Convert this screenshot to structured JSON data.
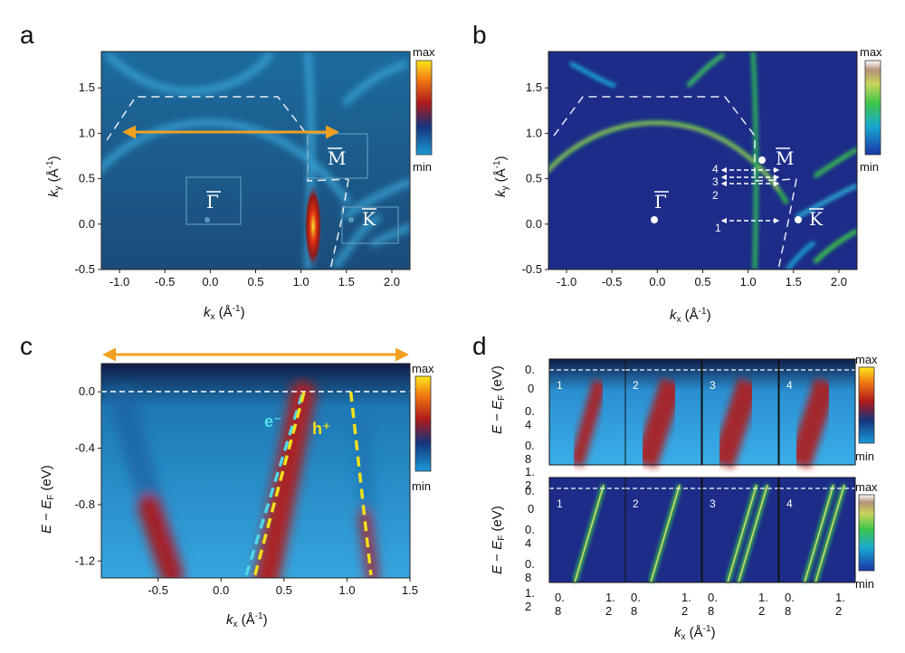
{
  "panels": {
    "a": {
      "label": "a"
    },
    "b": {
      "label": "b"
    },
    "c": {
      "label": "c"
    },
    "d": {
      "label": "d"
    }
  },
  "colorbar": {
    "max": "max",
    "min": "min"
  },
  "symbols": {
    "gamma": "Γ",
    "M": "M",
    "K": "K"
  },
  "annotations": {
    "electron": "e⁻",
    "hole": "h⁺",
    "cuts": [
      "1",
      "2",
      "3",
      "4"
    ]
  },
  "chart_data": [
    {
      "id": "a",
      "type": "heatmap",
      "xlabel": "k_x (Å⁻¹)",
      "ylabel": "k_y (Å⁻¹)",
      "xlim": [
        -1.2,
        2.2
      ],
      "ylim": [
        -0.5,
        1.9
      ],
      "xticks": [
        "-1.0",
        "-0.5",
        "0.0",
        "0.5",
        "1.0",
        "1.5",
        "2.0"
      ],
      "yticks": [
        "-0.5",
        "0.0",
        "0.5",
        "1.0",
        "1.5"
      ],
      "colorscale": "blue-red-yellow",
      "points": [
        {
          "label": "Γ",
          "x": 0.0,
          "y": 0.0
        },
        {
          "label": "M",
          "x": 1.17,
          "y": 0.67
        },
        {
          "label": "K",
          "x": 1.57,
          "y": 0.0
        }
      ],
      "cut": {
        "x": [
          -0.95,
          1.45
        ],
        "y": 1.0
      }
    },
    {
      "id": "b",
      "type": "heatmap",
      "xlabel": "k_x (Å⁻¹)",
      "ylabel": "k_y (Å⁻¹)",
      "xlim": [
        -1.2,
        2.2
      ],
      "ylim": [
        -0.5,
        1.9
      ],
      "xticks": [
        "-1.0",
        "-0.5",
        "0.0",
        "0.5",
        "1.0",
        "1.5",
        "2.0"
      ],
      "yticks": [
        "-0.5",
        "0.0",
        "0.5",
        "1.0",
        "1.5"
      ],
      "colorscale": "blue-green-brown",
      "points": [
        {
          "label": "Γ",
          "x": 0.0,
          "y": 0.0
        },
        {
          "label": "M",
          "x": 1.17,
          "y": 0.67
        },
        {
          "label": "K",
          "x": 1.57,
          "y": 0.0
        }
      ],
      "cuts": [
        {
          "label": "1",
          "y": 0.0
        },
        {
          "label": "2",
          "y": 0.38
        },
        {
          "label": "3",
          "y": 0.44
        },
        {
          "label": "4",
          "y": 0.5
        }
      ]
    },
    {
      "id": "c",
      "type": "heatmap",
      "xlabel": "k_x (Å⁻¹)",
      "ylabel": "E − E_F (eV)",
      "xlim": [
        -0.95,
        1.5
      ],
      "ylim": [
        -1.32,
        0.2
      ],
      "xticks": [
        "-0.5",
        "0.0",
        "0.5",
        "1.0",
        "1.5"
      ],
      "yticks": [
        "0.0",
        "-0.4",
        "-0.8",
        "-1.2"
      ],
      "colorscale": "blue-red-yellow",
      "series": [
        {
          "name": "e⁻",
          "x": [
            0.2,
            0.65
          ],
          "y": [
            -1.3,
            0.0
          ]
        },
        {
          "name": "e⁻",
          "x": [
            0.27,
            0.66
          ],
          "y": [
            -1.3,
            0.0
          ]
        },
        {
          "name": "h⁺",
          "x": [
            1.03,
            1.19
          ],
          "y": [
            0.0,
            -1.3
          ]
        }
      ]
    },
    {
      "id": "d",
      "type": "heatmap",
      "xlabel": "k_x (Å⁻¹)",
      "ylabel": "E − E_F (eV)",
      "xticks": [
        "0.\n8",
        "1.\n2"
      ],
      "yticks": [
        "0.",
        "0",
        "0.\n4",
        "0.\n8",
        "1.\n2"
      ],
      "cuts": [
        "1",
        "2",
        "3",
        "4"
      ]
    }
  ]
}
